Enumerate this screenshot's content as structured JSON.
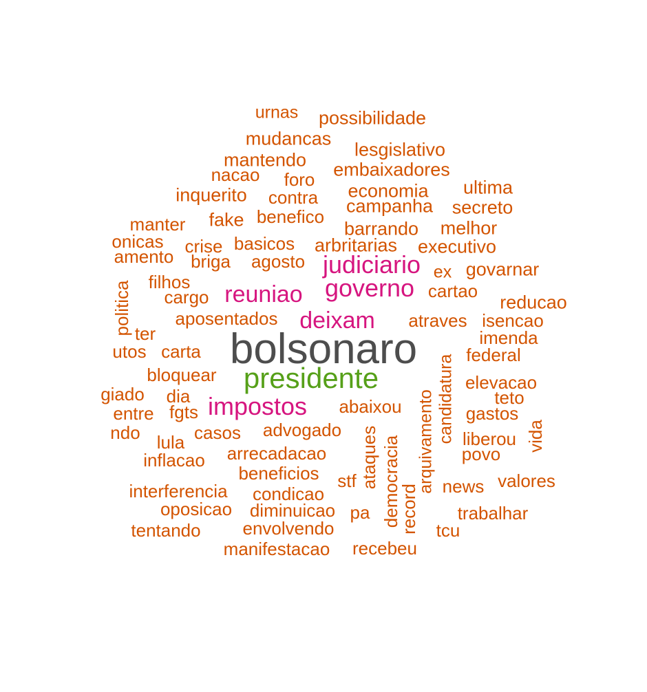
{
  "colors": {
    "top": "#4d4d4d",
    "second": "#56a019",
    "third": "#d6157f",
    "rest": "#d35400"
  },
  "words": [
    {
      "text": "bolsonaro",
      "tier": "top"
    },
    {
      "text": "presidente",
      "tier": "second"
    },
    {
      "text": "judiciario",
      "tier": "third"
    },
    {
      "text": "governo",
      "tier": "third"
    },
    {
      "text": "reuniao",
      "tier": "third"
    },
    {
      "text": "deixam",
      "tier": "third"
    },
    {
      "text": "impostos",
      "tier": "third"
    },
    {
      "text": "urnas",
      "tier": "rest"
    },
    {
      "text": "possibilidade",
      "tier": "rest"
    },
    {
      "text": "mudancas",
      "tier": "rest"
    },
    {
      "text": "lesgislativo",
      "tier": "rest"
    },
    {
      "text": "mantendo",
      "tier": "rest"
    },
    {
      "text": "embaixadores",
      "tier": "rest"
    },
    {
      "text": "nacao",
      "tier": "rest"
    },
    {
      "text": "foro",
      "tier": "rest"
    },
    {
      "text": "economia",
      "tier": "rest"
    },
    {
      "text": "ultima",
      "tier": "rest"
    },
    {
      "text": "inquerito",
      "tier": "rest"
    },
    {
      "text": "contra",
      "tier": "rest"
    },
    {
      "text": "campanha",
      "tier": "rest"
    },
    {
      "text": "secreto",
      "tier": "rest"
    },
    {
      "text": "manter",
      "tier": "rest"
    },
    {
      "text": "fake",
      "tier": "rest"
    },
    {
      "text": "benefico",
      "tier": "rest"
    },
    {
      "text": "barrando",
      "tier": "rest"
    },
    {
      "text": "melhor",
      "tier": "rest"
    },
    {
      "text": "onicas",
      "tier": "rest"
    },
    {
      "text": "crise",
      "tier": "rest"
    },
    {
      "text": "basicos",
      "tier": "rest"
    },
    {
      "text": "arbritarias",
      "tier": "rest"
    },
    {
      "text": "executivo",
      "tier": "rest"
    },
    {
      "text": "amento",
      "tier": "rest"
    },
    {
      "text": "briga",
      "tier": "rest"
    },
    {
      "text": "agosto",
      "tier": "rest"
    },
    {
      "text": "ex",
      "tier": "rest"
    },
    {
      "text": "govarnar",
      "tier": "rest"
    },
    {
      "text": "filhos",
      "tier": "rest"
    },
    {
      "text": "cargo",
      "tier": "rest"
    },
    {
      "text": "cartao",
      "tier": "rest"
    },
    {
      "text": "reducao",
      "tier": "rest"
    },
    {
      "text": "politica",
      "tier": "rest"
    },
    {
      "text": "aposentados",
      "tier": "rest"
    },
    {
      "text": "atraves",
      "tier": "rest"
    },
    {
      "text": "isencao",
      "tier": "rest"
    },
    {
      "text": "ter",
      "tier": "rest"
    },
    {
      "text": "imenda",
      "tier": "rest"
    },
    {
      "text": "utos",
      "tier": "rest"
    },
    {
      "text": "carta",
      "tier": "rest"
    },
    {
      "text": "federal",
      "tier": "rest"
    },
    {
      "text": "candidatura",
      "tier": "rest"
    },
    {
      "text": "bloquear",
      "tier": "rest"
    },
    {
      "text": "elevacao",
      "tier": "rest"
    },
    {
      "text": "giado",
      "tier": "rest"
    },
    {
      "text": "dia",
      "tier": "rest"
    },
    {
      "text": "arquivamento",
      "tier": "rest"
    },
    {
      "text": "teto",
      "tier": "rest"
    },
    {
      "text": "entre",
      "tier": "rest"
    },
    {
      "text": "fgts",
      "tier": "rest"
    },
    {
      "text": "abaixou",
      "tier": "rest"
    },
    {
      "text": "gastos",
      "tier": "rest"
    },
    {
      "text": "ndo",
      "tier": "rest"
    },
    {
      "text": "casos",
      "tier": "rest"
    },
    {
      "text": "advogado",
      "tier": "rest"
    },
    {
      "text": "ataques",
      "tier": "rest"
    },
    {
      "text": "democracia",
      "tier": "rest"
    },
    {
      "text": "liberou",
      "tier": "rest"
    },
    {
      "text": "vida",
      "tier": "rest"
    },
    {
      "text": "lula",
      "tier": "rest"
    },
    {
      "text": "povo",
      "tier": "rest"
    },
    {
      "text": "inflacao",
      "tier": "rest"
    },
    {
      "text": "arrecadacao",
      "tier": "rest"
    },
    {
      "text": "beneficios",
      "tier": "rest"
    },
    {
      "text": "stf",
      "tier": "rest"
    },
    {
      "text": "record",
      "tier": "rest"
    },
    {
      "text": "news",
      "tier": "rest"
    },
    {
      "text": "valores",
      "tier": "rest"
    },
    {
      "text": "interferencia",
      "tier": "rest"
    },
    {
      "text": "condicao",
      "tier": "rest"
    },
    {
      "text": "oposicao",
      "tier": "rest"
    },
    {
      "text": "diminuicao",
      "tier": "rest"
    },
    {
      "text": "pa",
      "tier": "rest"
    },
    {
      "text": "trabalhar",
      "tier": "rest"
    },
    {
      "text": "tentando",
      "tier": "rest"
    },
    {
      "text": "envolvendo",
      "tier": "rest"
    },
    {
      "text": "tcu",
      "tier": "rest"
    },
    {
      "text": "manifestacao",
      "tier": "rest"
    },
    {
      "text": "recebeu",
      "tier": "rest"
    }
  ]
}
